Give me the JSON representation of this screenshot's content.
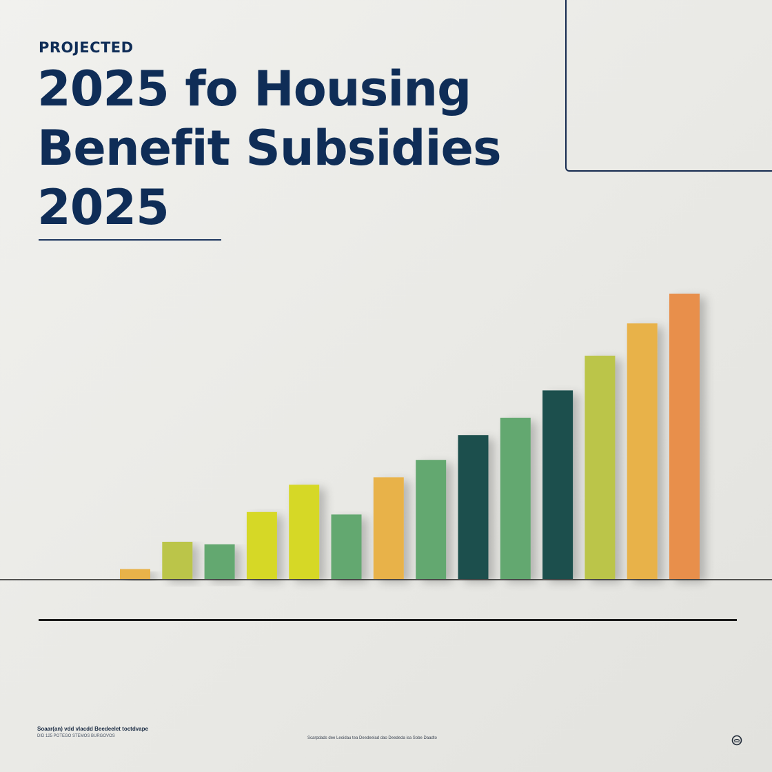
{
  "header": {
    "eyebrow": "PROJECTED",
    "title_lines": [
      "2025 fo Housing",
      "Benefit Subsidies",
      "2025"
    ]
  },
  "footer": {
    "left_line_1": "Soaar(an) vdd vlacdd Beedeelet toctdvape",
    "left_line_2": "DID 125 POTEGO STEMOS BURGOVOS",
    "center_text": "Scarpdads dee Leoidau tea Deedeelad dao Deededa isa Sobe Daadto"
  },
  "colors": {
    "title": "#0f2d57",
    "orange": "#e88f4c",
    "amber": "#e8b24a",
    "yellow": "#d6d825",
    "lime": "#bbc54a",
    "green": "#64a870",
    "teal": "#1d4f4d"
  },
  "chart_data": {
    "type": "bar",
    "values": [
      4,
      15,
      14,
      27,
      38,
      26,
      41,
      48,
      58,
      65,
      76,
      90,
      103,
      115
    ],
    "colors": [
      "#e8b24a",
      "#bbc54a",
      "#64a870",
      "#d6d825",
      "#d6d825",
      "#64a870",
      "#e8b24a",
      "#64a870",
      "#1d4f4d",
      "#64a870",
      "#1d4f4d",
      "#bbc54a",
      "#e8b24a",
      "#e88f4c"
    ],
    "ylim": [
      0,
      120
    ],
    "grid": false,
    "legend": "none"
  }
}
